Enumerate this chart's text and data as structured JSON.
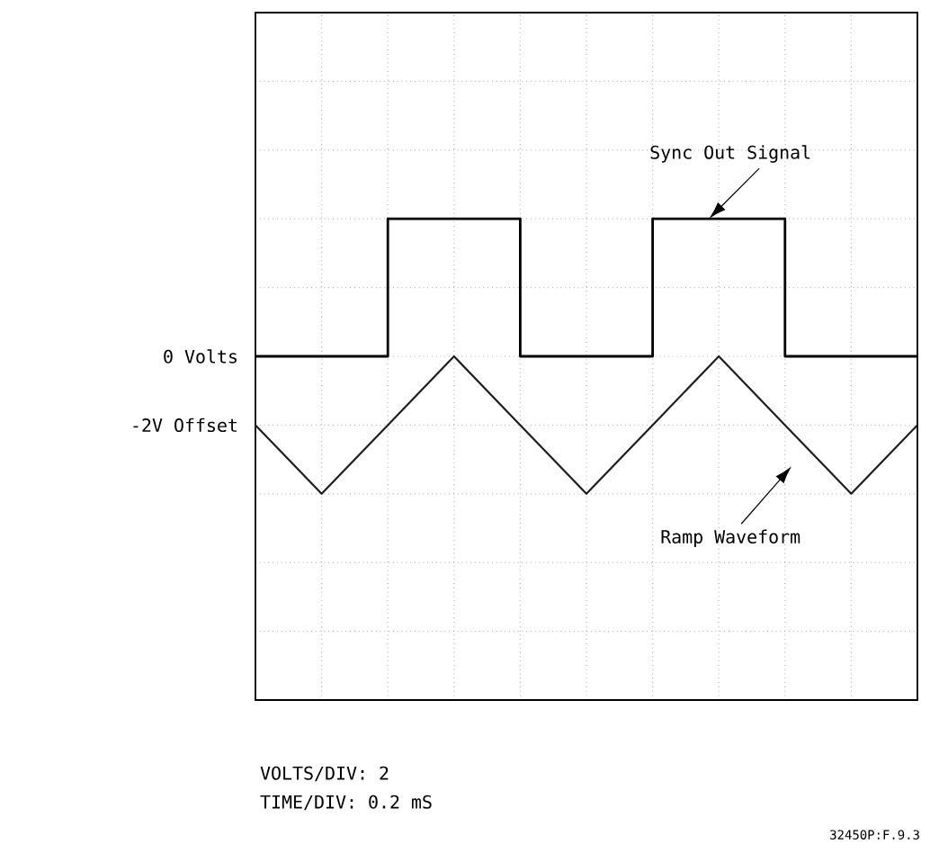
{
  "chart_data": {
    "type": "step",
    "categories": [
      null,
      null,
      null,
      null,
      null,
      null,
      null,
      null,
      null,
      null,
      null
    ],
    "ylim": [
      -10,
      10
    ],
    "yticks": [
      {
        "value": -8,
        "label": null
      },
      {
        "value": -6,
        "label": null
      },
      {
        "value": -4,
        "label": null
      },
      {
        "value": -2,
        "label": "-2V Offset"
      },
      {
        "value": 0,
        "label": "0 Volts"
      },
      {
        "value": 2,
        "label": null
      },
      {
        "value": 4,
        "label": null
      },
      {
        "value": 6,
        "label": null
      },
      {
        "value": 8,
        "label": null
      }
    ],
    "tick_labels": "y",
    "grid": true,
    "marker": "none",
    "line_style": "solid",
    "series": [
      {
        "color": "#000000",
        "values": [
          0,
          0,
          4,
          4,
          0,
          0,
          4,
          4,
          0,
          0,
          0
        ]
      },
      {
        "type": "line",
        "color": "#1e1e1e",
        "values": [
          -2,
          -4,
          -2,
          0,
          -2,
          -4,
          -2,
          0,
          -2,
          -4,
          -2
        ]
      }
    ],
    "annotations": [
      "Sync Out Signal",
      "Ramp Waveform",
      "VOLTS/DIV: 2",
      "TIME/DIV: 0.2 mS",
      "32450P:F.9.3"
    ]
  }
}
